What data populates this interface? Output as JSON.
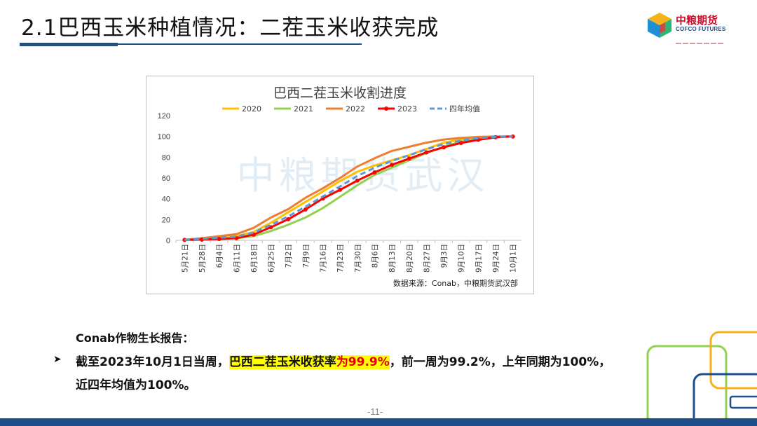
{
  "slide": {
    "title": "2.1巴西玉米种植情况：二茬玉米收获完成",
    "page_number": "-11-"
  },
  "logo": {
    "name_cn": "中粮期货",
    "name_en": "COFCO FUTURES"
  },
  "report": {
    "heading": "Conab作物生长报告：",
    "line1_pre": "截至2023年10月1日当周，",
    "line1_hl": "巴西二茬玉米收获率",
    "line1_hl_red": "为99.9%",
    "line1_post": "，前一周为99.2%，上年同期为100%，",
    "line2": "近四年均值为100%。"
  },
  "colors": {
    "brand_blue": "#1f4e8c",
    "highlight": "#ffff00",
    "highlight_text": "#e00000"
  },
  "chart_data": {
    "type": "line",
    "title": "巴西二茬玉米收割进度",
    "watermark": "中粮期货武汉",
    "source": "数据来源：Conab，中粮期货武汉部",
    "legend_position": "top",
    "grid": false,
    "ylim": [
      0,
      120
    ],
    "yticks": [
      0,
      20,
      40,
      60,
      80,
      100,
      120
    ],
    "categories": [
      "5月21日",
      "5月28日",
      "6月4日",
      "6月11日",
      "6月18日",
      "6月25日",
      "7月2日",
      "7月9日",
      "7月16日",
      "7月23日",
      "7月30日",
      "8月6日",
      "8月13日",
      "8月20日",
      "8月27日",
      "9月3日",
      "9月10日",
      "9月17日",
      "9月24日",
      "10月1日"
    ],
    "series": [
      {
        "name": "2020",
        "color": "#ffc000",
        "dash": false,
        "markers": false,
        "values": [
          0.5,
          2,
          3,
          4,
          8,
          17,
          27,
          37,
          47,
          57,
          66,
          72,
          77,
          82,
          88,
          94,
          97,
          99,
          99.5,
          100
        ]
      },
      {
        "name": "2021",
        "color": "#92d050",
        "dash": false,
        "markers": false,
        "values": [
          0.5,
          1,
          1.5,
          2,
          4,
          9,
          15,
          22,
          31,
          42,
          53,
          63,
          70,
          77,
          84,
          90,
          95,
          98,
          99.5,
          100
        ]
      },
      {
        "name": "2022",
        "color": "#ed7d31",
        "dash": false,
        "markers": false,
        "values": [
          0.5,
          2,
          4,
          6,
          12,
          22,
          30,
          41,
          50,
          60,
          71,
          79,
          86,
          90,
          94,
          97,
          98.5,
          99.5,
          100,
          100
        ]
      },
      {
        "name": "2023",
        "color": "#ff0000",
        "dash": false,
        "markers": true,
        "values": [
          0.4,
          0.7,
          1.3,
          2.1,
          5.6,
          12.6,
          20.3,
          29.7,
          40.2,
          48.6,
          57.5,
          65.4,
          72.7,
          78.7,
          84.6,
          89.5,
          93.7,
          96.7,
          99.2,
          99.9
        ]
      },
      {
        "name": "四年均值",
        "color": "#5b9bd5",
        "dash": true,
        "markers": false,
        "values": [
          0.5,
          1.4,
          2.5,
          3.5,
          7.4,
          15,
          23,
          32.4,
          42.1,
          51.9,
          61.9,
          69.9,
          76.4,
          81.9,
          87.6,
          92.6,
          96.1,
          98.4,
          99.6,
          100
        ]
      }
    ]
  }
}
